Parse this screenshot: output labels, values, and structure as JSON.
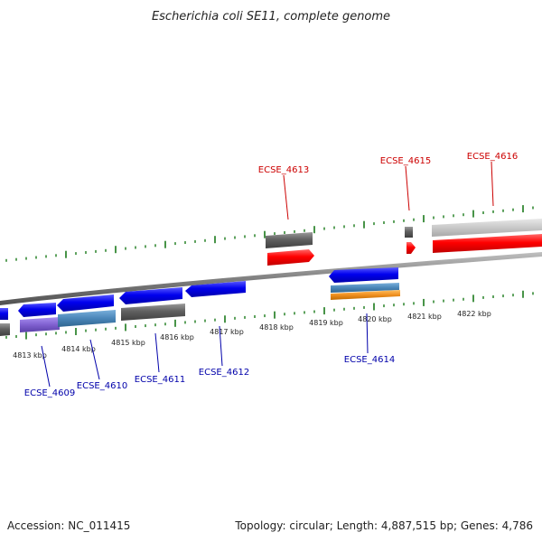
{
  "title": "Escherichia coli SE11, complete genome",
  "footer": {
    "accession": "Accession: NC_011415",
    "summary": "Topology: circular; Length: 4,887,515 bp; Genes: 4,786"
  },
  "colors": {
    "backbone": "#8a8a8a",
    "tick": "#1a7a1a",
    "label_forward": "#cc0000",
    "label_reverse": "#0000aa",
    "cds": "#ff0000",
    "cds_reverse": "#0000ee",
    "gene": "#606060",
    "light_gene": "#c8c8c8",
    "blue_gene": "#4a86b8",
    "orange": "#f09020",
    "purple": "#8060d0"
  },
  "ticks": [
    {
      "label": "4813 kbp"
    },
    {
      "label": "4814 kbp"
    },
    {
      "label": "4815 kbp"
    },
    {
      "label": "4816 kbp"
    },
    {
      "label": "4817 kbp"
    },
    {
      "label": "4818 kbp"
    },
    {
      "label": "4819 kbp"
    },
    {
      "label": "4820 kbp"
    },
    {
      "label": "4821 kbp"
    },
    {
      "label": "4822 kbp"
    }
  ],
  "genes": [
    {
      "id": "ECSE_4609",
      "strand": "reverse"
    },
    {
      "id": "ECSE_4610",
      "strand": "reverse"
    },
    {
      "id": "ECSE_4611",
      "strand": "reverse"
    },
    {
      "id": "ECSE_4612",
      "strand": "reverse"
    },
    {
      "id": "ECSE_4613",
      "strand": "forward"
    },
    {
      "id": "ECSE_4614",
      "strand": "reverse"
    },
    {
      "id": "ECSE_4615",
      "strand": "forward"
    },
    {
      "id": "ECSE_4616",
      "strand": "forward"
    }
  ]
}
